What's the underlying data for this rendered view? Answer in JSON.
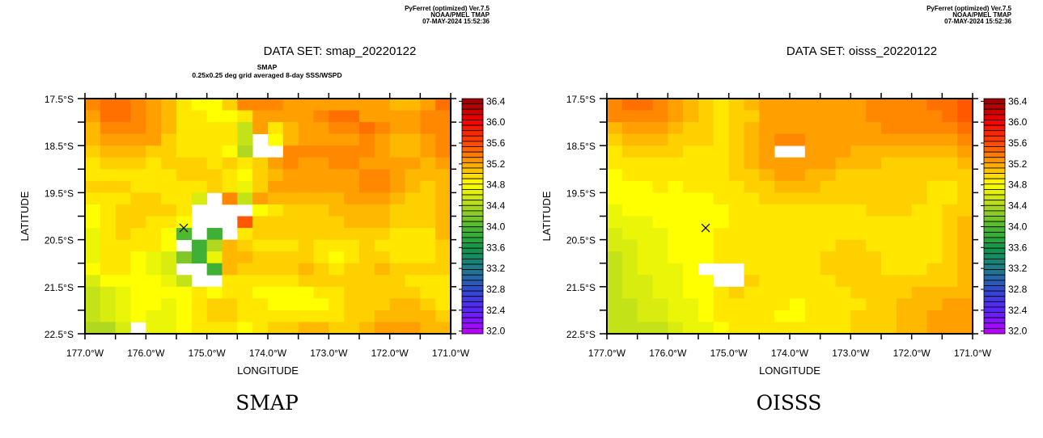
{
  "chart_data": [
    {
      "type": "heatmap",
      "header": [
        "PyFerret (optimized) Ver.7.5",
        "NOAA/PMEL TMAP",
        "07-MAY-2024 15:52:36"
      ],
      "title": "DATA SET: smap_20220122",
      "subtitle": [
        "SMAP",
        "0.25x0.25 deg grid averaged 8-day SSS/WSPD"
      ],
      "caption": "SMAP",
      "xlabel": "LONGITUDE",
      "ylabel": "LATITUDE",
      "xlim": [
        -177.0,
        -171.0
      ],
      "ylim": [
        -22.5,
        -17.5
      ],
      "cell_size_deg": 0.25,
      "x_tick_labels": [
        "177.0°W",
        "176.0°W",
        "175.0°W",
        "174.0°W",
        "173.0°W",
        "172.0°W",
        "171.0°W"
      ],
      "y_tick_labels": [
        "17.5°S",
        "18.5°S",
        "19.5°S",
        "20.5°S",
        "21.5°S",
        "22.5°S"
      ],
      "marker": {
        "symbol": "x",
        "lon": -175.38,
        "lat": -20.25
      },
      "rows_north_to_south": [
        [
          35.3,
          35.4,
          35.4,
          35.3,
          35.2,
          35.1,
          34.9,
          34.8,
          34.8,
          35.0,
          35.3,
          35.3,
          35.3,
          35.2,
          35.2,
          35.2,
          35.2,
          35.2,
          35.2,
          35.2,
          35.1,
          35.1,
          35.2,
          35.4
        ],
        [
          35.2,
          35.4,
          35.4,
          35.3,
          35.2,
          35.1,
          34.9,
          34.9,
          34.8,
          34.8,
          34.9,
          35.2,
          35.2,
          35.2,
          35.2,
          35.3,
          35.4,
          35.4,
          35.2,
          35.2,
          35.2,
          35.2,
          35.3,
          35.3
        ],
        [
          35.1,
          35.3,
          35.3,
          35.3,
          35.2,
          35.1,
          34.9,
          34.9,
          34.9,
          34.9,
          34.5,
          35.2,
          34.9,
          35.1,
          35.2,
          35.2,
          35.3,
          35.3,
          35.4,
          35.3,
          35.2,
          35.2,
          35.3,
          35.3
        ],
        [
          35.1,
          35.2,
          35.2,
          35.2,
          35.2,
          35.0,
          34.9,
          34.9,
          34.9,
          34.9,
          34.5,
          null,
          34.8,
          35.1,
          35.2,
          35.2,
          35.2,
          35.2,
          35.3,
          35.2,
          35.1,
          35.1,
          35.2,
          35.3
        ],
        [
          35.0,
          35.1,
          35.1,
          35.1,
          35.0,
          35.0,
          34.9,
          34.9,
          34.9,
          34.8,
          34.4,
          null,
          null,
          35.3,
          35.3,
          35.3,
          35.3,
          35.3,
          35.3,
          35.2,
          35.1,
          35.1,
          35.2,
          35.3
        ],
        [
          34.9,
          35.0,
          35.0,
          35.0,
          34.9,
          35.0,
          35.0,
          35.0,
          34.9,
          35.0,
          34.9,
          35.0,
          35.2,
          35.3,
          35.2,
          35.2,
          35.3,
          35.3,
          35.2,
          35.2,
          35.2,
          35.2,
          35.1,
          35.2
        ],
        [
          34.9,
          34.9,
          34.9,
          34.9,
          34.9,
          34.9,
          35.0,
          35.0,
          35.0,
          34.9,
          34.8,
          35.0,
          35.1,
          35.2,
          35.2,
          35.2,
          35.2,
          35.2,
          35.3,
          35.3,
          35.2,
          35.1,
          35.1,
          35.1
        ],
        [
          35.0,
          35.0,
          35.0,
          34.9,
          34.9,
          34.9,
          34.9,
          34.9,
          35.0,
          34.9,
          34.7,
          35.0,
          35.2,
          35.2,
          35.2,
          35.2,
          35.2,
          35.2,
          35.3,
          35.3,
          35.2,
          35.1,
          35.0,
          35.1
        ],
        [
          34.9,
          34.9,
          34.9,
          35.0,
          35.0,
          34.9,
          34.9,
          34.6,
          null,
          35.3,
          34.5,
          35.2,
          35.1,
          35.1,
          35.1,
          35.1,
          35.1,
          35.2,
          35.2,
          35.2,
          35.1,
          35.0,
          35.0,
          35.1
        ],
        [
          34.8,
          34.9,
          35.0,
          35.0,
          35.0,
          35.0,
          34.9,
          null,
          null,
          null,
          null,
          34.8,
          34.9,
          35.0,
          35.0,
          35.0,
          35.1,
          35.1,
          35.1,
          35.1,
          35.0,
          35.0,
          35.0,
          35.1
        ],
        [
          34.8,
          34.9,
          35.0,
          35.0,
          34.9,
          34.9,
          34.8,
          null,
          null,
          null,
          35.5,
          35.0,
          35.0,
          35.0,
          35.0,
          35.0,
          35.0,
          35.1,
          35.1,
          35.1,
          35.0,
          35.0,
          35.0,
          35.1
        ],
        [
          34.7,
          34.9,
          35.0,
          34.9,
          34.9,
          34.8,
          34.0,
          null,
          33.9,
          null,
          34.9,
          35.0,
          35.0,
          35.0,
          35.0,
          35.0,
          35.0,
          35.0,
          35.0,
          35.0,
          34.9,
          34.9,
          34.9,
          35.1
        ],
        [
          34.7,
          34.9,
          34.9,
          34.9,
          34.9,
          34.8,
          null,
          33.9,
          34.4,
          35.1,
          35.0,
          34.9,
          34.9,
          34.9,
          35.0,
          34.9,
          34.9,
          34.9,
          35.0,
          34.9,
          34.9,
          34.9,
          34.9,
          35.0
        ],
        [
          34.7,
          34.9,
          34.9,
          34.8,
          34.7,
          34.6,
          34.2,
          33.9,
          34.7,
          35.1,
          35.1,
          35.0,
          35.0,
          35.0,
          35.0,
          34.9,
          34.8,
          34.9,
          35.0,
          35.0,
          34.9,
          34.9,
          34.9,
          35.0
        ],
        [
          34.8,
          34.9,
          34.9,
          34.8,
          34.7,
          34.6,
          null,
          null,
          33.9,
          35.1,
          35.0,
          35.0,
          35.0,
          35.0,
          35.1,
          35.0,
          34.9,
          35.0,
          35.0,
          35.1,
          35.0,
          35.0,
          35.0,
          35.0
        ],
        [
          34.6,
          34.8,
          34.8,
          34.8,
          34.8,
          34.7,
          34.5,
          null,
          null,
          34.9,
          34.9,
          34.9,
          34.9,
          34.9,
          35.0,
          35.0,
          35.0,
          35.0,
          35.0,
          35.0,
          35.0,
          34.9,
          34.9,
          34.9
        ],
        [
          34.5,
          34.6,
          34.7,
          34.8,
          34.8,
          34.8,
          34.8,
          34.9,
          34.8,
          34.9,
          34.9,
          34.8,
          34.8,
          34.8,
          34.8,
          34.9,
          34.9,
          35.0,
          35.0,
          35.0,
          35.0,
          35.0,
          34.9,
          34.9
        ],
        [
          34.5,
          34.6,
          34.7,
          34.8,
          34.8,
          34.7,
          34.8,
          34.9,
          35.0,
          35.0,
          34.9,
          34.9,
          34.8,
          34.8,
          34.8,
          34.8,
          34.9,
          35.0,
          35.0,
          35.0,
          35.1,
          35.1,
          35.0,
          34.9
        ],
        [
          34.5,
          34.6,
          34.7,
          34.8,
          34.7,
          34.7,
          34.8,
          34.9,
          35.0,
          35.0,
          34.9,
          34.9,
          34.9,
          34.9,
          34.9,
          34.9,
          34.9,
          35.0,
          35.0,
          35.1,
          35.1,
          35.1,
          35.1,
          35.0
        ],
        [
          34.4,
          34.4,
          34.6,
          null,
          34.7,
          34.7,
          34.8,
          34.9,
          34.9,
          34.9,
          34.8,
          34.9,
          35.0,
          35.0,
          35.1,
          35.1,
          35.0,
          35.0,
          35.1,
          35.2,
          35.2,
          35.2,
          35.1,
          35.1
        ]
      ],
      "colorbar": {
        "min": 32.0,
        "max": 36.4,
        "step": 0.1,
        "labels": [
          "36.4",
          "36.0",
          "35.6",
          "35.2",
          "34.8",
          "34.4",
          "34.0",
          "33.6",
          "33.2",
          "32.8",
          "32.4",
          "32.0"
        ]
      }
    },
    {
      "type": "heatmap",
      "header": [
        "PyFerret (optimized) Ver.7.5",
        "NOAA/PMEL TMAP",
        "07-MAY-2024 15:52:36"
      ],
      "title": "DATA SET: oisss_20220122",
      "subtitle": [],
      "caption": "OISSS",
      "xlabel": "LONGITUDE",
      "ylabel": "LATITUDE",
      "xlim": [
        -177.0,
        -171.0
      ],
      "ylim": [
        -22.5,
        -17.5
      ],
      "cell_size_deg": 0.25,
      "x_tick_labels": [
        "177.0°W",
        "176.0°W",
        "175.0°W",
        "174.0°W",
        "173.0°W",
        "172.0°W",
        "171.0°W"
      ],
      "y_tick_labels": [
        "17.5°S",
        "18.5°S",
        "19.5°S",
        "20.5°S",
        "21.5°S",
        "22.5°S"
      ],
      "marker": {
        "symbol": "x",
        "lon": -175.38,
        "lat": -20.25
      },
      "rows_north_to_south": [
        [
          35.3,
          35.4,
          35.4,
          35.3,
          35.2,
          35.1,
          35.0,
          34.9,
          35.0,
          35.1,
          35.2,
          35.2,
          35.2,
          35.2,
          35.2,
          35.2,
          35.2,
          35.3,
          35.3,
          35.3,
          35.3,
          35.4,
          35.4,
          35.5
        ],
        [
          35.3,
          35.3,
          35.3,
          35.3,
          35.2,
          35.1,
          35.0,
          34.9,
          35.0,
          35.0,
          35.2,
          35.2,
          35.2,
          35.2,
          35.2,
          35.2,
          35.2,
          35.3,
          35.3,
          35.3,
          35.3,
          35.3,
          35.4,
          35.5
        ],
        [
          35.1,
          35.2,
          35.2,
          35.2,
          35.1,
          35.0,
          35.0,
          34.9,
          35.0,
          35.1,
          35.2,
          35.2,
          35.2,
          35.2,
          35.2,
          35.2,
          35.2,
          35.2,
          35.3,
          35.3,
          35.3,
          35.3,
          35.3,
          35.4
        ],
        [
          35.0,
          35.1,
          35.1,
          35.1,
          35.0,
          35.0,
          35.0,
          34.9,
          35.0,
          35.1,
          35.2,
          35.3,
          35.3,
          35.2,
          35.2,
          35.2,
          35.2,
          35.2,
          35.2,
          35.2,
          35.2,
          35.2,
          35.2,
          35.3
        ],
        [
          34.9,
          35.0,
          35.0,
          35.0,
          35.0,
          34.9,
          34.9,
          34.9,
          35.0,
          35.1,
          35.2,
          null,
          null,
          35.2,
          35.2,
          35.2,
          35.1,
          35.1,
          35.1,
          35.1,
          35.1,
          35.1,
          35.1,
          35.2
        ],
        [
          34.9,
          34.9,
          34.9,
          34.9,
          34.9,
          34.9,
          34.9,
          34.9,
          35.0,
          35.1,
          35.2,
          35.2,
          35.2,
          35.2,
          35.2,
          35.1,
          35.1,
          35.1,
          35.0,
          35.0,
          35.0,
          35.0,
          35.0,
          35.1
        ],
        [
          34.8,
          34.9,
          34.9,
          34.9,
          34.9,
          34.9,
          34.9,
          34.9,
          35.0,
          35.0,
          35.1,
          35.2,
          35.2,
          35.1,
          35.1,
          35.0,
          35.0,
          35.0,
          35.0,
          35.0,
          35.0,
          35.0,
          35.0,
          35.0
        ],
        [
          34.8,
          34.8,
          34.8,
          34.9,
          34.8,
          34.9,
          34.9,
          34.9,
          34.9,
          35.0,
          35.0,
          35.1,
          35.1,
          35.1,
          35.0,
          35.0,
          35.0,
          35.0,
          35.0,
          35.0,
          35.0,
          34.9,
          34.9,
          35.0
        ],
        [
          34.8,
          34.8,
          34.8,
          34.8,
          34.8,
          34.8,
          34.8,
          34.9,
          34.9,
          34.9,
          35.0,
          35.0,
          35.0,
          35.0,
          35.0,
          35.0,
          35.0,
          35.0,
          35.0,
          35.0,
          35.0,
          34.9,
          34.9,
          35.0
        ],
        [
          34.7,
          34.8,
          34.8,
          34.8,
          34.8,
          34.8,
          34.8,
          34.8,
          34.9,
          34.9,
          34.9,
          34.9,
          34.9,
          34.9,
          34.9,
          34.9,
          34.9,
          35.0,
          35.0,
          35.0,
          34.9,
          34.9,
          35.0,
          35.0
        ],
        [
          34.7,
          34.7,
          34.7,
          34.8,
          34.8,
          34.8,
          34.8,
          34.8,
          34.9,
          34.9,
          34.9,
          34.9,
          34.9,
          34.9,
          34.9,
          34.9,
          34.9,
          34.9,
          34.9,
          34.9,
          34.9,
          34.9,
          35.0,
          35.1
        ],
        [
          34.6,
          34.7,
          34.7,
          34.7,
          34.8,
          34.8,
          34.8,
          34.9,
          34.9,
          34.9,
          34.9,
          34.9,
          34.9,
          34.9,
          34.9,
          34.9,
          34.9,
          34.9,
          34.9,
          34.9,
          34.9,
          34.9,
          35.0,
          35.1
        ],
        [
          34.6,
          34.6,
          34.7,
          34.7,
          34.8,
          34.8,
          34.8,
          34.9,
          34.9,
          34.9,
          34.9,
          34.9,
          34.9,
          34.9,
          34.9,
          35.0,
          35.0,
          34.9,
          34.9,
          34.9,
          34.9,
          34.9,
          35.0,
          35.1
        ],
        [
          34.5,
          34.6,
          34.7,
          34.7,
          34.8,
          34.8,
          34.8,
          34.9,
          34.9,
          34.9,
          34.9,
          34.9,
          34.9,
          34.9,
          35.0,
          35.0,
          35.0,
          35.0,
          34.9,
          34.9,
          34.9,
          34.9,
          35.0,
          35.1
        ],
        [
          34.5,
          34.6,
          34.7,
          34.7,
          34.7,
          34.8,
          null,
          null,
          null,
          34.9,
          34.9,
          34.9,
          34.9,
          34.9,
          35.0,
          35.0,
          35.0,
          35.0,
          34.9,
          34.9,
          34.9,
          35.0,
          35.0,
          35.1
        ],
        [
          34.5,
          34.6,
          34.6,
          34.7,
          34.7,
          34.8,
          34.8,
          null,
          null,
          35.0,
          34.9,
          34.9,
          34.9,
          34.9,
          34.9,
          35.0,
          35.0,
          35.0,
          35.0,
          35.0,
          35.0,
          35.0,
          35.0,
          35.1
        ],
        [
          34.5,
          34.6,
          34.6,
          34.7,
          34.7,
          34.8,
          34.8,
          34.9,
          35.0,
          34.9,
          34.9,
          34.9,
          34.9,
          34.9,
          34.9,
          34.9,
          35.0,
          35.0,
          35.0,
          35.0,
          35.1,
          35.1,
          35.1,
          35.1
        ],
        [
          34.5,
          34.5,
          34.6,
          34.6,
          34.7,
          34.7,
          34.8,
          34.9,
          34.9,
          34.9,
          34.9,
          34.9,
          34.8,
          34.9,
          34.9,
          34.9,
          34.9,
          35.0,
          35.0,
          35.1,
          35.1,
          35.1,
          35.2,
          35.2
        ],
        [
          34.5,
          34.5,
          34.6,
          34.6,
          34.7,
          34.7,
          34.8,
          34.9,
          34.9,
          34.9,
          34.9,
          34.8,
          34.8,
          34.9,
          34.9,
          34.9,
          35.0,
          35.0,
          35.0,
          35.1,
          35.1,
          35.2,
          35.2,
          35.2
        ],
        [
          34.5,
          34.5,
          34.5,
          34.5,
          34.6,
          34.7,
          34.7,
          34.8,
          34.9,
          34.9,
          34.9,
          34.9,
          34.9,
          34.9,
          34.9,
          34.9,
          35.0,
          35.0,
          35.0,
          35.1,
          35.1,
          35.2,
          35.2,
          35.2
        ]
      ],
      "colorbar": {
        "min": 32.0,
        "max": 36.4,
        "step": 0.1,
        "labels": [
          "36.4",
          "36.0",
          "35.6",
          "35.2",
          "34.8",
          "34.4",
          "34.0",
          "33.6",
          "33.2",
          "32.8",
          "32.4",
          "32.0"
        ]
      }
    }
  ]
}
